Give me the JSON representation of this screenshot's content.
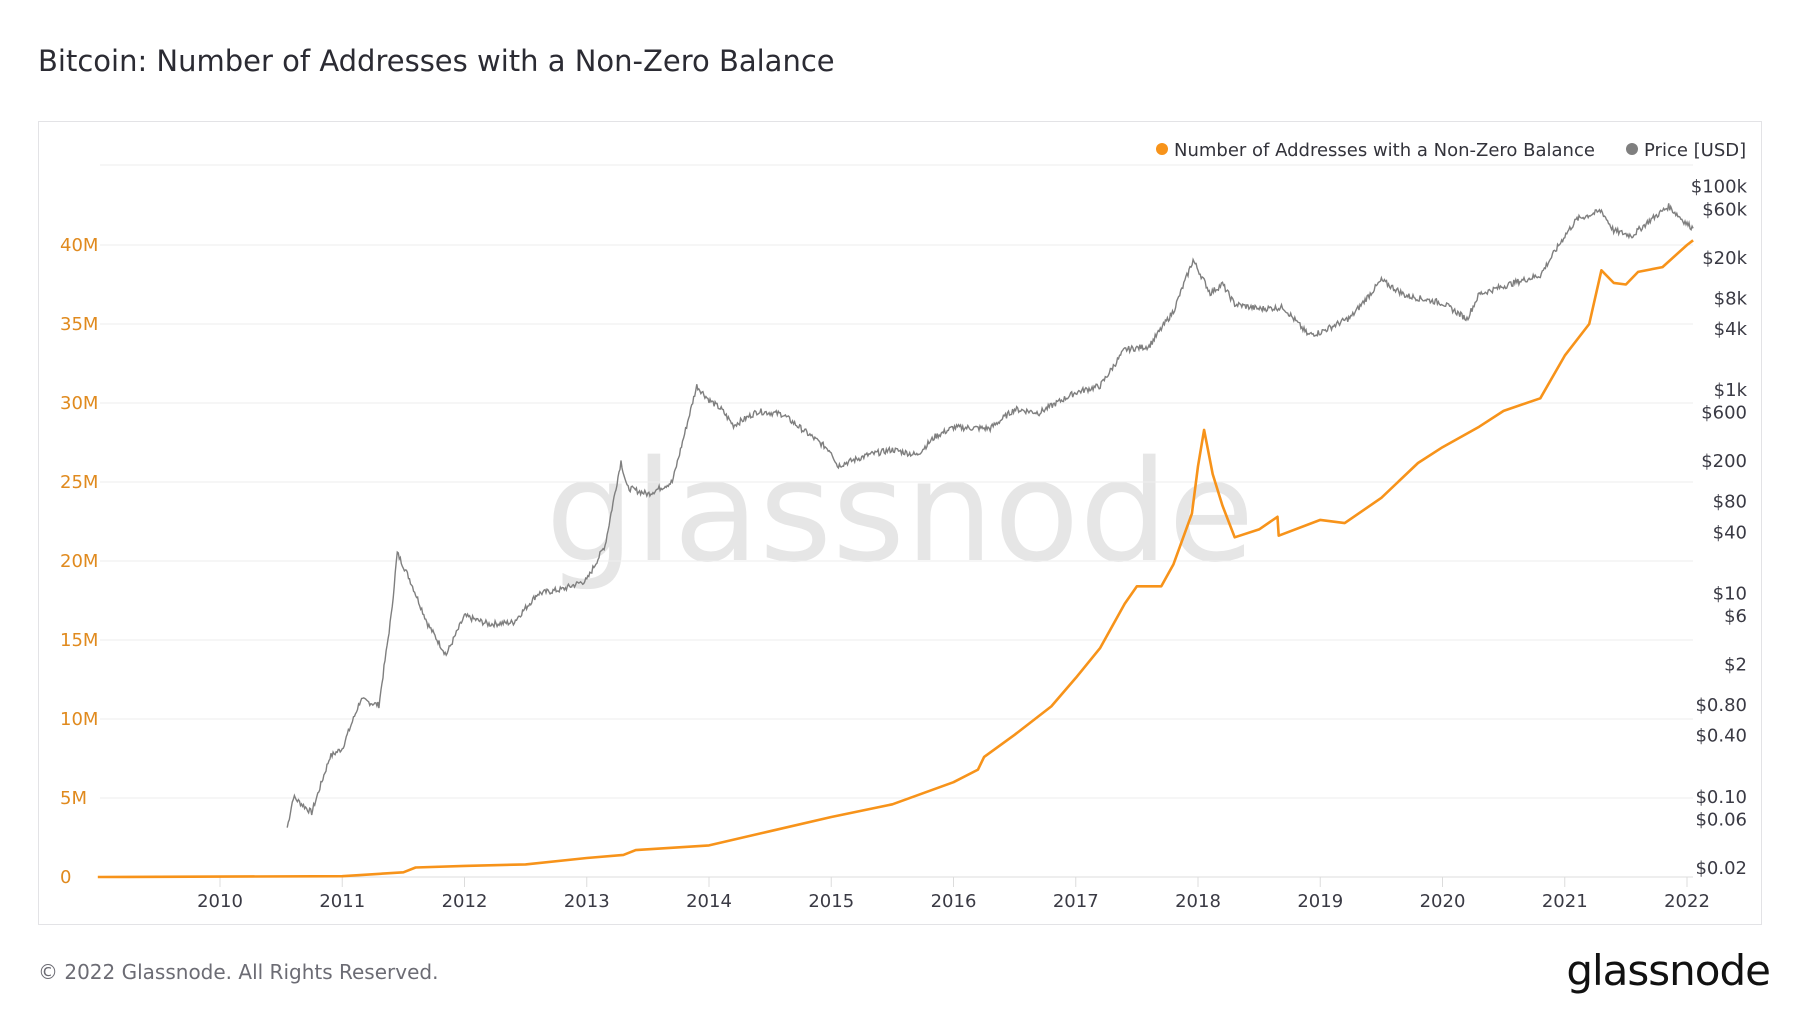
{
  "title": "Bitcoin: Number of Addresses with a Non-Zero Balance",
  "footer": "© 2022 Glassnode. All Rights Reserved.",
  "logo": "glassnode",
  "watermark": "glassnode",
  "colors": {
    "addresses": "#f7931a",
    "price": "#7f7f7f",
    "left_axis_text": "#e08a1e",
    "grid": "#eeeeee"
  },
  "chart_data": {
    "type": "line",
    "title": "Bitcoin: Number of Addresses with a Non-Zero Balance",
    "legend": {
      "placement": "top-right",
      "entries": [
        "Number of Addresses with a Non-Zero Balance",
        "Price [USD]"
      ]
    },
    "x_ticks": [
      "2010",
      "2011",
      "2012",
      "2013",
      "2014",
      "2015",
      "2016",
      "2017",
      "2018",
      "2019",
      "2020",
      "2021",
      "2022"
    ],
    "xlim": [
      2009.0,
      2022.05
    ],
    "left_axis": {
      "ticks": [
        0,
        5,
        10,
        15,
        20,
        25,
        30,
        35,
        40
      ],
      "tick_labels": [
        "0",
        "5M",
        "10M",
        "15M",
        "20M",
        "25M",
        "30M",
        "35M",
        "40M"
      ],
      "ylim_millions": [
        0,
        45
      ],
      "unit": "millions"
    },
    "right_axis": {
      "scale": "log",
      "ylim": [
        0.02,
        100000
      ],
      "ticks": [
        0.02,
        0.06,
        0.1,
        0.4,
        0.8,
        2,
        6,
        10,
        40,
        80,
        200,
        600,
        1000,
        4000,
        8000,
        20000,
        60000,
        100000
      ],
      "tick_labels": [
        "$0.02",
        "$0.06",
        "$0.10",
        "$0.40",
        "$0.80",
        "$2",
        "$6",
        "$10",
        "$40",
        "$80",
        "$200",
        "$600",
        "$1k",
        "$4k",
        "$8k",
        "$20k",
        "$60k",
        "$100k"
      ]
    },
    "grid": true,
    "series": [
      {
        "name": "Number of Addresses with a Non-Zero Balance",
        "axis": "left",
        "unit": "millions",
        "x": [
          2009.0,
          2011.0,
          2011.5,
          2011.6,
          2012.0,
          2012.5,
          2013.0,
          2013.3,
          2013.4,
          2014.0,
          2014.5,
          2015.0,
          2015.5,
          2016.0,
          2016.2,
          2016.25,
          2016.5,
          2016.8,
          2017.0,
          2017.2,
          2017.4,
          2017.5,
          2017.7,
          2017.8,
          2017.95,
          2018.0,
          2018.05,
          2018.12,
          2018.2,
          2018.3,
          2018.5,
          2018.65,
          2018.66,
          2019.0,
          2019.2,
          2019.5,
          2019.8,
          2020.0,
          2020.3,
          2020.5,
          2020.8,
          2021.0,
          2021.2,
          2021.3,
          2021.4,
          2021.5,
          2021.6,
          2021.8,
          2022.0,
          2022.05
        ],
        "values": [
          0,
          0.05,
          0.3,
          0.6,
          0.7,
          0.8,
          1.2,
          1.4,
          1.7,
          2.0,
          2.9,
          3.8,
          4.6,
          6.0,
          6.8,
          7.6,
          9.0,
          10.8,
          12.6,
          14.5,
          17.3,
          18.4,
          18.4,
          19.8,
          23.0,
          26.0,
          28.3,
          25.5,
          23.5,
          21.5,
          22.0,
          22.8,
          21.6,
          22.6,
          22.4,
          24.0,
          26.2,
          27.2,
          28.5,
          29.5,
          30.3,
          33.0,
          35.0,
          38.4,
          37.6,
          37.5,
          38.3,
          38.6,
          40.0,
          40.3
        ]
      },
      {
        "name": "Price [USD]",
        "axis": "right",
        "x": [
          2010.55,
          2010.6,
          2010.75,
          2010.9,
          2011.0,
          2011.15,
          2011.3,
          2011.4,
          2011.45,
          2011.55,
          2011.7,
          2011.85,
          2012.0,
          2012.2,
          2012.4,
          2012.6,
          2012.8,
          2013.0,
          2013.15,
          2013.28,
          2013.33,
          2013.5,
          2013.7,
          2013.9,
          2014.0,
          2014.1,
          2014.2,
          2014.4,
          2014.6,
          2014.8,
          2015.0,
          2015.05,
          2015.3,
          2015.5,
          2015.7,
          2015.85,
          2016.0,
          2016.3,
          2016.5,
          2016.7,
          2017.0,
          2017.2,
          2017.4,
          2017.6,
          2017.8,
          2017.96,
          2018.1,
          2018.2,
          2018.3,
          2018.5,
          2018.7,
          2018.9,
          2019.0,
          2019.25,
          2019.5,
          2019.7,
          2020.0,
          2020.2,
          2020.3,
          2020.6,
          2020.8,
          2021.0,
          2021.1,
          2021.3,
          2021.4,
          2021.55,
          2021.7,
          2021.85,
          2022.0,
          2022.05
        ],
        "values": [
          0.05,
          0.1,
          0.07,
          0.25,
          0.3,
          0.9,
          0.8,
          6,
          25,
          14,
          5,
          2.5,
          6,
          5,
          5.2,
          10,
          11,
          13.5,
          30,
          200,
          110,
          95,
          125,
          1100,
          800,
          650,
          450,
          620,
          580,
          380,
          250,
          180,
          230,
          260,
          230,
          350,
          430,
          420,
          650,
          600,
          950,
          1100,
          2500,
          2700,
          6000,
          19000,
          9000,
          11000,
          7000,
          6300,
          6500,
          3500,
          3700,
          5200,
          12000,
          8500,
          7200,
          5000,
          8800,
          11500,
          13500,
          33000,
          48000,
          58000,
          37000,
          33000,
          47000,
          64000,
          43000,
          39000
        ]
      }
    ]
  }
}
